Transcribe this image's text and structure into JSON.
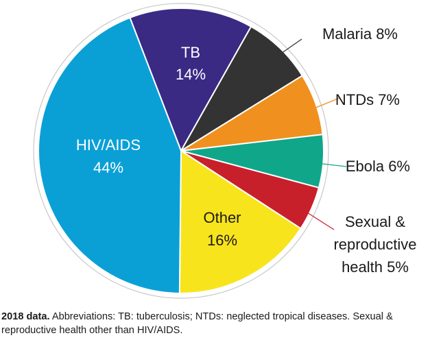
{
  "chart_data": {
    "type": "pie",
    "slices": [
      {
        "label": "TB",
        "value": 14,
        "display": "14%",
        "color": "#3a2a84",
        "label_position": "inside",
        "label_color": "#ffffff",
        "label_lines": [
          "TB",
          "14%"
        ]
      },
      {
        "label": "Malaria",
        "value": 8,
        "display": "Malaria 8%",
        "color": "#333333",
        "label_position": "outside",
        "leader_color": "#333333",
        "label_lines": [
          "Malaria 8%"
        ]
      },
      {
        "label": "NTDs",
        "value": 7,
        "display": "NTDs 7%",
        "color": "#f0901e",
        "label_position": "outside",
        "leader_color": "#f0901e",
        "label_lines": [
          "NTDs 7%"
        ]
      },
      {
        "label": "Ebola",
        "value": 6,
        "display": "Ebola 6%",
        "color": "#10a68a",
        "label_position": "outside",
        "leader_color": "#10a68a",
        "label_lines": [
          "Ebola 6%"
        ]
      },
      {
        "label": "Sexual & reproductive health",
        "value": 5,
        "display": "Sexual & reproductive health 5%",
        "color": "#c8202a",
        "label_position": "outside",
        "leader_color": "#c8202a",
        "label_lines": [
          "Sexual &",
          "reproductive",
          "health 5%"
        ]
      },
      {
        "label": "Other",
        "value": 16,
        "display": "16%",
        "color": "#f8e41c",
        "label_position": "inside",
        "label_color": "#1a1a1a",
        "label_lines": [
          "Other",
          "16%"
        ]
      },
      {
        "label": "HIV/AIDS",
        "value": 44,
        "display": "44%",
        "color": "#0aa0d6",
        "label_position": "inside",
        "label_color": "#ffffff",
        "label_lines": [
          "HIV/AIDS",
          "44%"
        ]
      }
    ],
    "start_angle_deg": -21,
    "direction": "clockwise",
    "outer_ring": true,
    "legend": "none"
  },
  "caption": {
    "bold": "2018 data.",
    "text": " Abbreviations: TB: tuberculosis; NTDs: neglected tropical diseases. Sexual & reproductive health other than HIV/AIDS."
  }
}
